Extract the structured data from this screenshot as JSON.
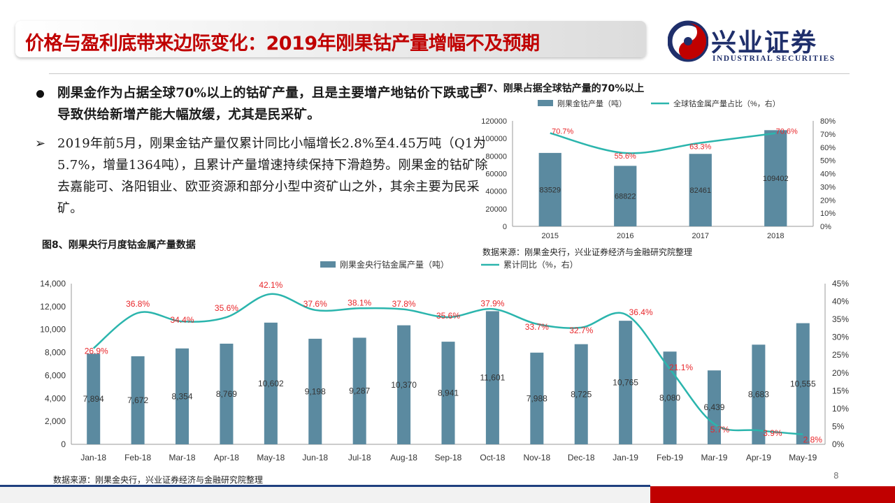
{
  "title": "价格与盈利底带来边际变化：2019年刚果钴产量增幅不及预期",
  "logo": {
    "name": "兴业证券",
    "english": "INDUSTRIAL SECURITIES",
    "color": "#1f2f6b"
  },
  "paragraphs": {
    "p1": "刚果金作为占据全球70%以上的钴矿产量，且是主要增产地钴价下跌或已导致供给新增产能大幅放缓，尤其是民采矿。",
    "p2": "2019年前5月，刚果金钴产量仅累计同比小幅增长2.8%至4.45万吨（Q1为5.7%，增量1364吨），且累计产量增速持续保持下滑趋势。刚果金的钴矿除去嘉能可、洛阳钼业、欧亚资源和部分小型中资矿山之外，其余主要为民采矿。"
  },
  "fig7": {
    "title": "图7、刚果占据全球钴产量的70%以上",
    "source": "数据来源：刚果金央行，兴业证券经济与金融研究院整理"
  },
  "fig8": {
    "title": "图8、刚果央行月度钴金属产量数据",
    "source": "数据来源：刚果金央行，兴业证券经济与金融研究院整理"
  },
  "page_number": "8",
  "colors": {
    "bar": "#5b8aa0",
    "line": "#2bb5ad",
    "label_red": "#e8262a",
    "title_red": "#c00000"
  },
  "chart_data": [
    {
      "type": "bar",
      "categories": [
        "2015",
        "2016",
        "2017",
        "2018"
      ],
      "series": [
        {
          "name": "刚果金钴产量（吨）",
          "type": "bar",
          "axis": "left",
          "values": [
            83529,
            68822,
            82461,
            109402
          ],
          "labels": [
            "83529",
            "68822",
            "82461",
            "109402"
          ]
        },
        {
          "name": "全球钴金属产量占比（%，右）",
          "type": "line",
          "axis": "right",
          "values": [
            70.7,
            55.6,
            63.3,
            70.6
          ],
          "labels": [
            "70.7%",
            "55.6%",
            "63.3%",
            "70.6%"
          ]
        }
      ],
      "ylim": [
        0,
        120000
      ],
      "yticks": [
        "0",
        "20000",
        "40000",
        "60000",
        "80000",
        "100000",
        "120000"
      ],
      "y2lim": [
        0,
        80
      ],
      "y2ticks": [
        "0%",
        "10%",
        "20%",
        "30%",
        "40%",
        "50%",
        "60%",
        "70%",
        "80%"
      ],
      "legend": "top"
    },
    {
      "type": "bar",
      "categories": [
        "Jan-18",
        "Feb-18",
        "Mar-18",
        "Apr-18",
        "May-18",
        "Jun-18",
        "Jul-18",
        "Aug-18",
        "Sep-18",
        "Oct-18",
        "Nov-18",
        "Dec-18",
        "Jan-19",
        "Feb-19",
        "Mar-19",
        "Apr-19",
        "May-19"
      ],
      "series": [
        {
          "name": "刚果金央行钴金属产量（吨）",
          "type": "bar",
          "axis": "left",
          "values": [
            7894,
            7672,
            8354,
            8769,
            10602,
            9198,
            9287,
            10370,
            8941,
            11601,
            7988,
            8725,
            10765,
            8080,
            6439,
            8683,
            10555
          ],
          "labels": [
            "7,894",
            "7,672",
            "8,354",
            "8,769",
            "10,602",
            "9,198",
            "9,287",
            "10,370",
            "8,941",
            "11,601",
            "7,988",
            "8,725",
            "10,765",
            "8,080",
            "6,439",
            "8,683",
            "10,555"
          ]
        },
        {
          "name": "累计同比（%，右）",
          "type": "line",
          "axis": "right",
          "values": [
            26.9,
            36.8,
            34.4,
            35.6,
            42.1,
            37.6,
            38.1,
            37.8,
            35.6,
            37.9,
            33.7,
            32.7,
            36.4,
            21.1,
            5.7,
            3.9,
            2.8
          ],
          "labels": [
            "26.9%",
            "36.8%",
            "34.4%",
            "35.6%",
            "42.1%",
            "37.6%",
            "38.1%",
            "37.8%",
            "35.6%",
            "37.9%",
            "33.7%",
            "32.7%",
            "36.4%",
            "21.1%",
            "5.7%",
            "3.9%",
            "2.8%"
          ]
        }
      ],
      "ylim": [
        0,
        14000
      ],
      "yticks": [
        "0",
        "2,000",
        "4,000",
        "6,000",
        "8,000",
        "10,000",
        "12,000",
        "14,000"
      ],
      "y2lim": [
        0,
        45
      ],
      "y2ticks": [
        "0%",
        "5%",
        "10%",
        "15%",
        "20%",
        "25%",
        "30%",
        "35%",
        "40%",
        "45%"
      ],
      "legend": "top"
    }
  ]
}
